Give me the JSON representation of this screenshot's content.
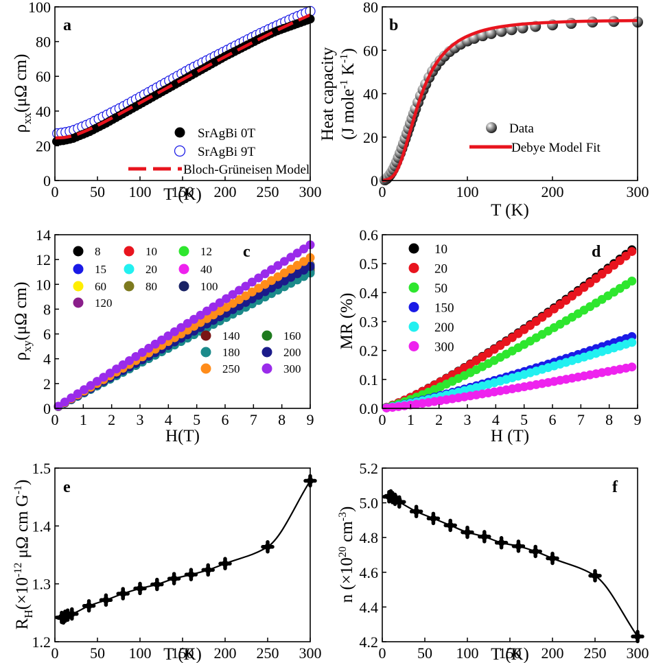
{
  "colors": {
    "black": "#000000",
    "blue": "#1a1ae6",
    "red": "#e8141e",
    "green": "#2ee62e",
    "cyan": "#22f0f0",
    "magenta": "#ee22ee",
    "yellow": "#ffee00",
    "olive": "#7d7a1f",
    "navy": "#1b2466",
    "purple": "#8a1e8a",
    "maroon": "#7a1414",
    "darkgreen": "#1e7a1e",
    "teal": "#1b8a8a",
    "darkblue": "#1b1b8a",
    "orange": "#ff8c1a",
    "violet": "#9a2bea",
    "silver": "#c7c7c7"
  },
  "chart_data": [
    {
      "panel": "a",
      "type": "line",
      "xlabel": "T (K)",
      "ylabel": {
        "main": "ρ",
        "sub": "xx",
        "rest": "(μΩ cm)"
      },
      "xlim": [
        0,
        300
      ],
      "ylim": [
        0,
        100
      ],
      "xticks": [
        "0",
        "50",
        "100",
        "150",
        "200",
        "250",
        "300"
      ],
      "yticks": [
        "0",
        "20",
        "40",
        "60",
        "80",
        "100"
      ],
      "series": [
        {
          "name": "SrAgBi 0T",
          "style": "filled-circle",
          "color": "black",
          "x": [
            2,
            10,
            20,
            30,
            40,
            50,
            60,
            80,
            100,
            120,
            140,
            160,
            180,
            200,
            220,
            240,
            260,
            280,
            300
          ],
          "y": [
            22.5,
            23,
            24,
            26,
            28,
            30.5,
            33,
            38.5,
            44,
            49.5,
            55,
            60.5,
            66,
            71.5,
            76.5,
            81.5,
            86,
            89.5,
            93
          ]
        },
        {
          "name": "SrAgBi 9T",
          "style": "open-circle",
          "color": "blue",
          "x": [
            2,
            10,
            20,
            30,
            40,
            50,
            60,
            80,
            100,
            120,
            140,
            160,
            180,
            200,
            220,
            240,
            260,
            280,
            300
          ],
          "y": [
            27,
            27.5,
            28.5,
            30.5,
            32.5,
            35,
            37.5,
            42.5,
            48,
            53.5,
            59,
            64.5,
            69.5,
            74.5,
            79.5,
            84.5,
            89,
            93.5,
            97.5
          ]
        },
        {
          "name": "Bloch-Grüneisen Model",
          "style": "dashed-line",
          "color": "red",
          "x": [
            0,
            10,
            20,
            30,
            40,
            50,
            60,
            80,
            100,
            120,
            140,
            160,
            180,
            200,
            220,
            240,
            260,
            280,
            300
          ],
          "y": [
            24.5,
            24.7,
            25.6,
            27.3,
            29.4,
            31.7,
            34.2,
            39.4,
            44.7,
            50.1,
            55.5,
            60.8,
            66.1,
            71.3,
            76.4,
            81.4,
            86.3,
            90.9,
            95.4
          ]
        }
      ]
    },
    {
      "panel": "b",
      "type": "scatter",
      "xlabel": "T (K)",
      "ylabel": {
        "line1": "Heat capacity",
        "line2": "(J mole-1 K-1)"
      },
      "xlim": [
        0,
        300
      ],
      "ylim": [
        0,
        80
      ],
      "xticks": [
        "0",
        "100",
        "200",
        "300"
      ],
      "yticks": [
        "0",
        "20",
        "40",
        "60",
        "80"
      ],
      "series": [
        {
          "name": "Data",
          "style": "shaded-sphere",
          "color": "black",
          "x": [
            3,
            5,
            7,
            9,
            11,
            13,
            15,
            17,
            19,
            21,
            23,
            25,
            27,
            29,
            31,
            33,
            35,
            37,
            39,
            42,
            45,
            48,
            51,
            55,
            59,
            63,
            68,
            73,
            79,
            85,
            92,
            100,
            108,
            118,
            128,
            140,
            152,
            165,
            180,
            200,
            222,
            247,
            272,
            300
          ],
          "y": [
            0.3,
            0.8,
            1.6,
            2.6,
            3.8,
            5.2,
            6.8,
            8.6,
            10.6,
            12.6,
            14.8,
            17.0,
            19.3,
            21.6,
            23.9,
            26.2,
            28.5,
            30.8,
            33.0,
            36.0,
            39.0,
            41.8,
            44.4,
            47.5,
            50.3,
            52.7,
            55.2,
            57.3,
            59.4,
            61.1,
            62.8,
            64.3,
            65.5,
            66.7,
            67.7,
            68.7,
            69.5,
            70.3,
            71.0,
            71.7,
            72.4,
            73.0,
            73.3,
            73.0
          ]
        },
        {
          "name": "Debye Model Fit",
          "style": "solid-line",
          "color": "red",
          "x": [
            0,
            5,
            10,
            15,
            20,
            25,
            30,
            35,
            40,
            45,
            50,
            55,
            60,
            70,
            80,
            90,
            100,
            120,
            140,
            160,
            180,
            200,
            220,
            240,
            260,
            280,
            300
          ],
          "y": [
            0,
            0.3,
            1.2,
            3.2,
            7.0,
            12.5,
            19.0,
            25.7,
            32.3,
            38.3,
            43.6,
            48.0,
            51.8,
            57.5,
            61.5,
            64.4,
            66.5,
            69.3,
            70.9,
            71.9,
            72.5,
            72.9,
            73.2,
            73.4,
            73.5,
            73.6,
            73.7
          ]
        }
      ]
    },
    {
      "panel": "c",
      "type": "line",
      "xlabel": "H(T)",
      "ylabel": {
        "main": "ρ",
        "sub": "xy",
        "rest": "(μΩ cm)"
      },
      "xlim": [
        0,
        9
      ],
      "ylim": [
        0,
        14
      ],
      "xticks": [
        "0",
        "1",
        "2",
        "3",
        "4",
        "5",
        "6",
        "7",
        "8",
        "9"
      ],
      "yticks": [
        "0",
        "2",
        "4",
        "6",
        "8",
        "10",
        "12",
        "14"
      ],
      "hmax": 9,
      "series": [
        {
          "name": "8",
          "color": "black",
          "slope": 1.285
        },
        {
          "name": "10",
          "color": "red",
          "slope": 1.285
        },
        {
          "name": "12",
          "color": "green",
          "slope": 1.28
        },
        {
          "name": "15",
          "color": "blue",
          "slope": 1.275
        },
        {
          "name": "20",
          "color": "cyan",
          "slope": 1.265
        },
        {
          "name": "40",
          "color": "magenta",
          "slope": 1.255
        },
        {
          "name": "60",
          "color": "yellow",
          "slope": 1.245
        },
        {
          "name": "80",
          "color": "olive",
          "slope": 1.235
        },
        {
          "name": "100",
          "color": "navy",
          "slope": 1.225
        },
        {
          "name": "120",
          "color": "purple",
          "slope": 1.215
        },
        {
          "name": "140",
          "color": "maroon",
          "slope": 1.255
        },
        {
          "name": "160",
          "color": "darkgreen",
          "slope": 1.26
        },
        {
          "name": "180",
          "color": "teal",
          "slope": 1.212
        },
        {
          "name": "200",
          "color": "darkblue",
          "slope": 1.27
        },
        {
          "name": "250",
          "color": "orange",
          "slope": 1.35
        },
        {
          "name": "300",
          "color": "violet",
          "slope": 1.465
        }
      ]
    },
    {
      "panel": "d",
      "type": "scatter",
      "xlabel": "H (T)",
      "ylabel": {
        "main": "MR (%)"
      },
      "xlim": [
        0,
        9
      ],
      "ylim": [
        0,
        0.6
      ],
      "xticks": [
        "0",
        "1",
        "2",
        "3",
        "4",
        "5",
        "6",
        "7",
        "8",
        "9"
      ],
      "yticks": [
        "0.0",
        "0.1",
        "0.2",
        "0.3",
        "0.4",
        "0.5",
        "0.6"
      ],
      "hmax": 8.8,
      "series": [
        {
          "name": "10",
          "color": "black",
          "mr_at_hmax": 0.548,
          "power": 1.22
        },
        {
          "name": "20",
          "color": "red",
          "mr_at_hmax": 0.542,
          "power": 1.22
        },
        {
          "name": "50",
          "color": "green",
          "mr_at_hmax": 0.44,
          "power": 1.22
        },
        {
          "name": "150",
          "color": "blue",
          "mr_at_hmax": 0.248,
          "power": 1.18
        },
        {
          "name": "200",
          "color": "cyan",
          "mr_at_hmax": 0.228,
          "power": 1.18
        },
        {
          "name": "300",
          "color": "magenta",
          "mr_at_hmax": 0.143,
          "power": 1.15
        }
      ]
    },
    {
      "panel": "e",
      "type": "line",
      "xlabel": "T (K)",
      "ylabel": {
        "main": "R",
        "sub": "H",
        "rest": "(×10",
        "sup": "-12",
        "rest2": " μΩ cm G",
        "sup2": "-1",
        "end": ")"
      },
      "xlim": [
        0,
        300
      ],
      "ylim": [
        1.2,
        1.5
      ],
      "xticks": [
        "0",
        "50",
        "100",
        "150",
        "200",
        "250",
        "300"
      ],
      "yticks": [
        "1.2",
        "1.3",
        "1.4",
        "1.5"
      ],
      "series": [
        {
          "name": "R_H",
          "style": "filled-cross-line",
          "color": "black",
          "x": [
            8,
            10,
            12,
            15,
            20,
            40,
            60,
            80,
            100,
            120,
            140,
            160,
            180,
            200,
            250,
            300
          ],
          "y": [
            1.242,
            1.241,
            1.244,
            1.246,
            1.248,
            1.262,
            1.272,
            1.283,
            1.292,
            1.299,
            1.309,
            1.316,
            1.324,
            1.335,
            1.364,
            1.478
          ]
        }
      ]
    },
    {
      "panel": "f",
      "type": "line",
      "xlabel": "T (K)",
      "ylabel": {
        "main": "n (×10",
        "sup": "20",
        "rest": " cm",
        "sup2": "-3",
        "end": ")"
      },
      "xlim": [
        0,
        300
      ],
      "ylim": [
        4.2,
        5.2
      ],
      "xticks": [
        "0",
        "50",
        "100",
        "150",
        "200",
        "250",
        "300"
      ],
      "yticks": [
        "4.2",
        "4.4",
        "4.6",
        "4.8",
        "5.0",
        "5.2"
      ],
      "series": [
        {
          "name": "n",
          "style": "filled-cross-line",
          "color": "black",
          "x": [
            8,
            10,
            12,
            15,
            20,
            40,
            60,
            80,
            100,
            120,
            140,
            160,
            180,
            200,
            250,
            300
          ],
          "y": [
            5.035,
            5.04,
            5.03,
            5.02,
            5.005,
            4.95,
            4.91,
            4.87,
            4.83,
            4.805,
            4.77,
            4.75,
            4.72,
            4.68,
            4.58,
            4.23
          ]
        }
      ]
    }
  ]
}
